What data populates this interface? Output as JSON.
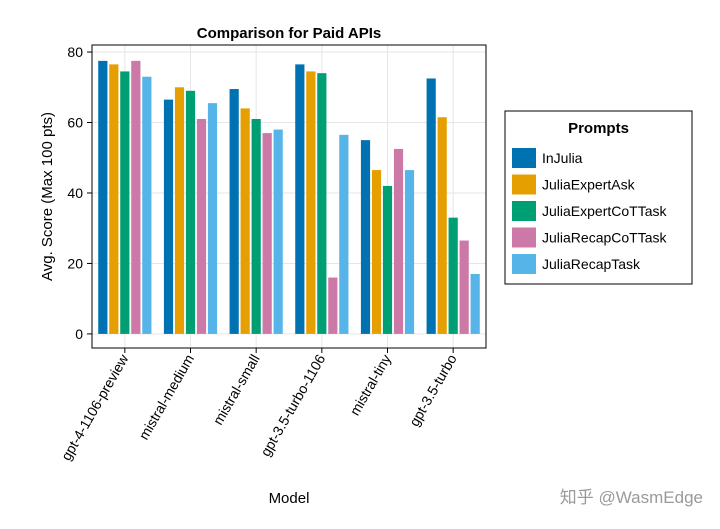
{
  "chart_data": {
    "type": "bar",
    "title": "Comparison for Paid APIs",
    "xlabel": "Model",
    "ylabel": "Avg. Score (Max 100 pts)",
    "ylim": [
      -4,
      82
    ],
    "yticks": [
      0,
      20,
      40,
      60,
      80
    ],
    "grid": true,
    "categories": [
      "gpt-4-1106-preview",
      "mistral-medium",
      "mistral-small",
      "gpt-3.5-turbo-1106",
      "mistral-tiny",
      "gpt-3.5-turbo"
    ],
    "legend": {
      "title": "Prompts",
      "position": "right"
    },
    "series": [
      {
        "name": "InJulia",
        "color": "#0072B2",
        "values": [
          77.5,
          66.5,
          69.5,
          76.5,
          55.0,
          72.5
        ]
      },
      {
        "name": "JuliaExpertAsk",
        "color": "#E69F00",
        "values": [
          76.5,
          70.0,
          64.0,
          74.5,
          46.5,
          61.5
        ]
      },
      {
        "name": "JuliaExpertCoTTask",
        "color": "#009E73",
        "values": [
          74.5,
          69.0,
          61.0,
          74.0,
          42.0,
          33.0
        ]
      },
      {
        "name": "JuliaRecapCoTTask",
        "color": "#CC79A7",
        "values": [
          77.5,
          61.0,
          57.0,
          16.0,
          52.5,
          26.5
        ]
      },
      {
        "name": "JuliaRecapTask",
        "color": "#56B4E9",
        "values": [
          73.0,
          65.5,
          58.0,
          56.5,
          46.5,
          17.0
        ]
      }
    ]
  },
  "watermark": "知乎 @WasmEdge"
}
